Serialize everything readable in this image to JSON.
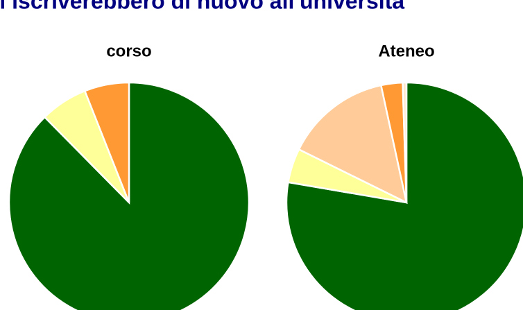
{
  "title": "Si iscriverebbero di nuovo all'università",
  "chart_data": [
    {
      "type": "pie",
      "title": "corso",
      "values": [
        87.6,
        6.4,
        6.0
      ],
      "colors": [
        "#006400",
        "#ffff99",
        "#ff9933"
      ]
    },
    {
      "type": "pie",
      "title": "Ateneo",
      "values": [
        77.7,
        4.6,
        14.3,
        2.9,
        0.5
      ],
      "colors": [
        "#006400",
        "#ffff99",
        "#ffcc99",
        "#ff9933",
        "#ffe8cc"
      ]
    }
  ]
}
